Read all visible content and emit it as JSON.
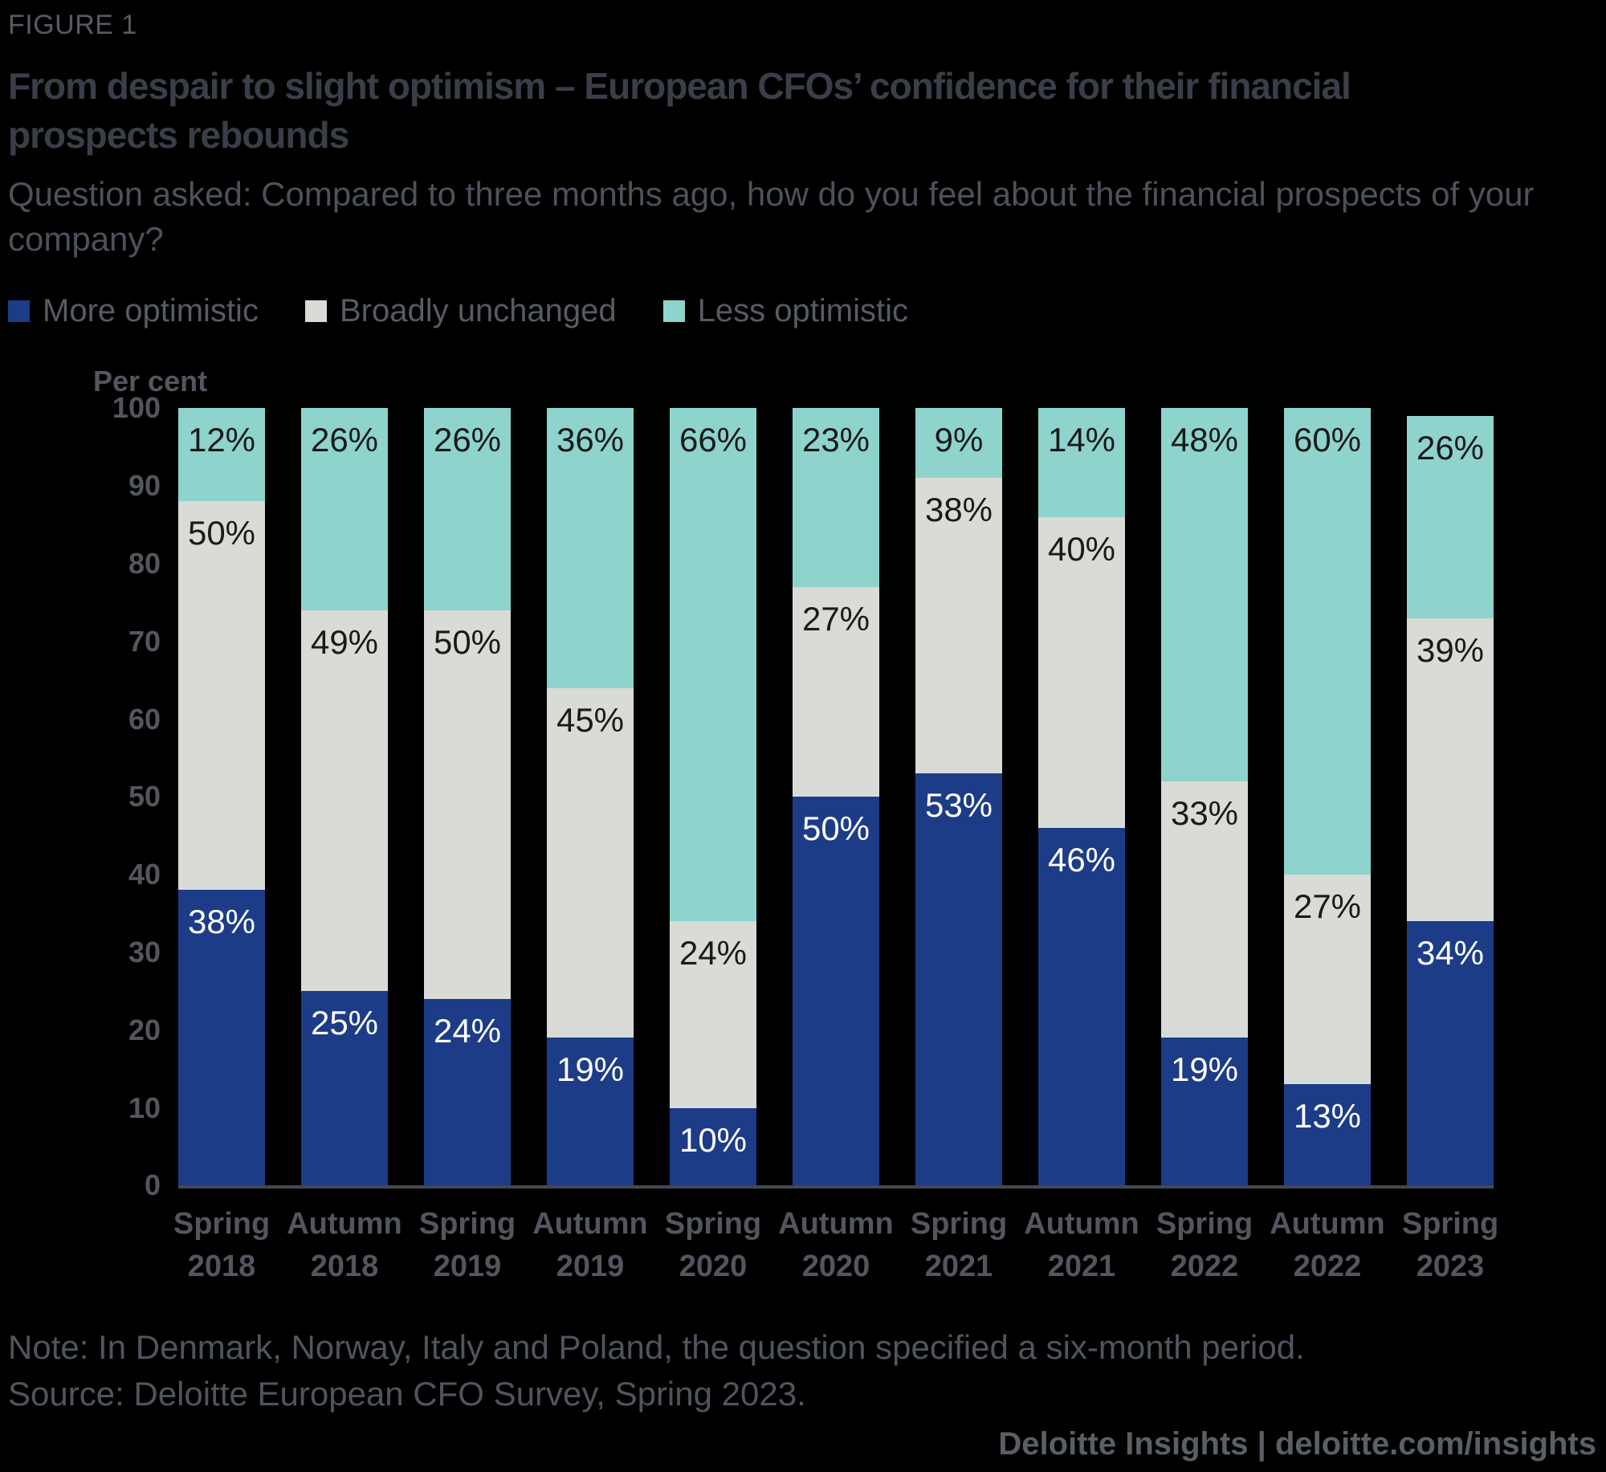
{
  "figure_label": "FIGURE 1",
  "title": "From despair to slight optimism – European CFOs’ confidence for their financial prospects rebounds",
  "subtitle": "Question asked: Compared to three months ago, how do you feel about the financial prospects of your company?",
  "chart_data": {
    "type": "bar",
    "stacked": true,
    "orientation": "vertical",
    "title": "From despair to slight optimism – European CFOs’ confidence for their financial prospects rebounds",
    "xlabel": "",
    "ylabel": "Per cent",
    "ylim": [
      0,
      100
    ],
    "yticks": [
      0,
      10,
      20,
      30,
      40,
      50,
      60,
      70,
      80,
      90,
      100
    ],
    "grid": false,
    "legend_position": "top-left",
    "value_suffix": "%",
    "categories": [
      "Spring 2018",
      "Autumn 2018",
      "Spring 2019",
      "Autumn 2019",
      "Spring 2020",
      "Autumn 2020",
      "Spring 2021",
      "Autumn 2021",
      "Spring 2022",
      "Autumn 2022",
      "Spring 2023"
    ],
    "series": [
      {
        "name": "More optimistic",
        "color": "#1d3c87",
        "label_color": "#ffffff",
        "values": [
          38,
          25,
          24,
          19,
          10,
          50,
          53,
          46,
          19,
          13,
          34
        ]
      },
      {
        "name": "Broadly unchanged",
        "color": "#d9dbd6",
        "label_color": "#1a1a1a",
        "values": [
          50,
          49,
          50,
          45,
          24,
          27,
          38,
          40,
          33,
          27,
          39
        ]
      },
      {
        "name": "Less optimistic",
        "color": "#8ed3cc",
        "label_color": "#1a1a1a",
        "values": [
          12,
          26,
          26,
          36,
          66,
          23,
          9,
          14,
          48,
          60,
          26
        ]
      }
    ]
  },
  "footer": {
    "note": "Note: In Denmark, Norway, Italy and Poland, the question specified a six-month period.",
    "source": "Source: Deloitte European CFO Survey, Spring 2023.",
    "branding": "Deloitte Insights | deloitte.com/insights"
  },
  "colors": {
    "background": "#000000",
    "title_text": "#3a3e48",
    "muted_text": "#53565e",
    "axis_line": "#45484e"
  }
}
